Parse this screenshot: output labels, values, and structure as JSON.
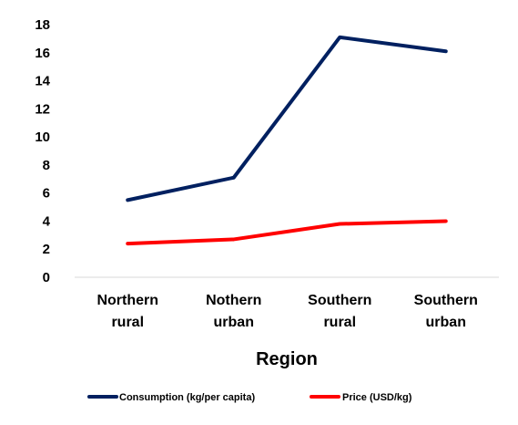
{
  "chart_data": {
    "type": "line",
    "categories": [
      [
        "Northern",
        "rural"
      ],
      [
        "Nothern",
        "urban"
      ],
      [
        "Southern",
        "rural"
      ],
      [
        "Southern",
        "urban"
      ]
    ],
    "series": [
      {
        "name": "Consumption (kg/per capita)",
        "color": "#002060",
        "values": [
          5.5,
          7.1,
          17.1,
          16.1
        ]
      },
      {
        "name": "Price (USD/kg)",
        "color": "#ff0000",
        "values": [
          2.4,
          2.7,
          3.8,
          4.0
        ]
      }
    ],
    "yticks": [
      "0",
      "2",
      "4",
      "6",
      "8",
      "10",
      "12",
      "14",
      "16",
      "18"
    ],
    "ylim": [
      0,
      18
    ],
    "xlabel": "Region",
    "ylabel": "",
    "title": "",
    "grid": false,
    "legend_position": "bottom"
  }
}
